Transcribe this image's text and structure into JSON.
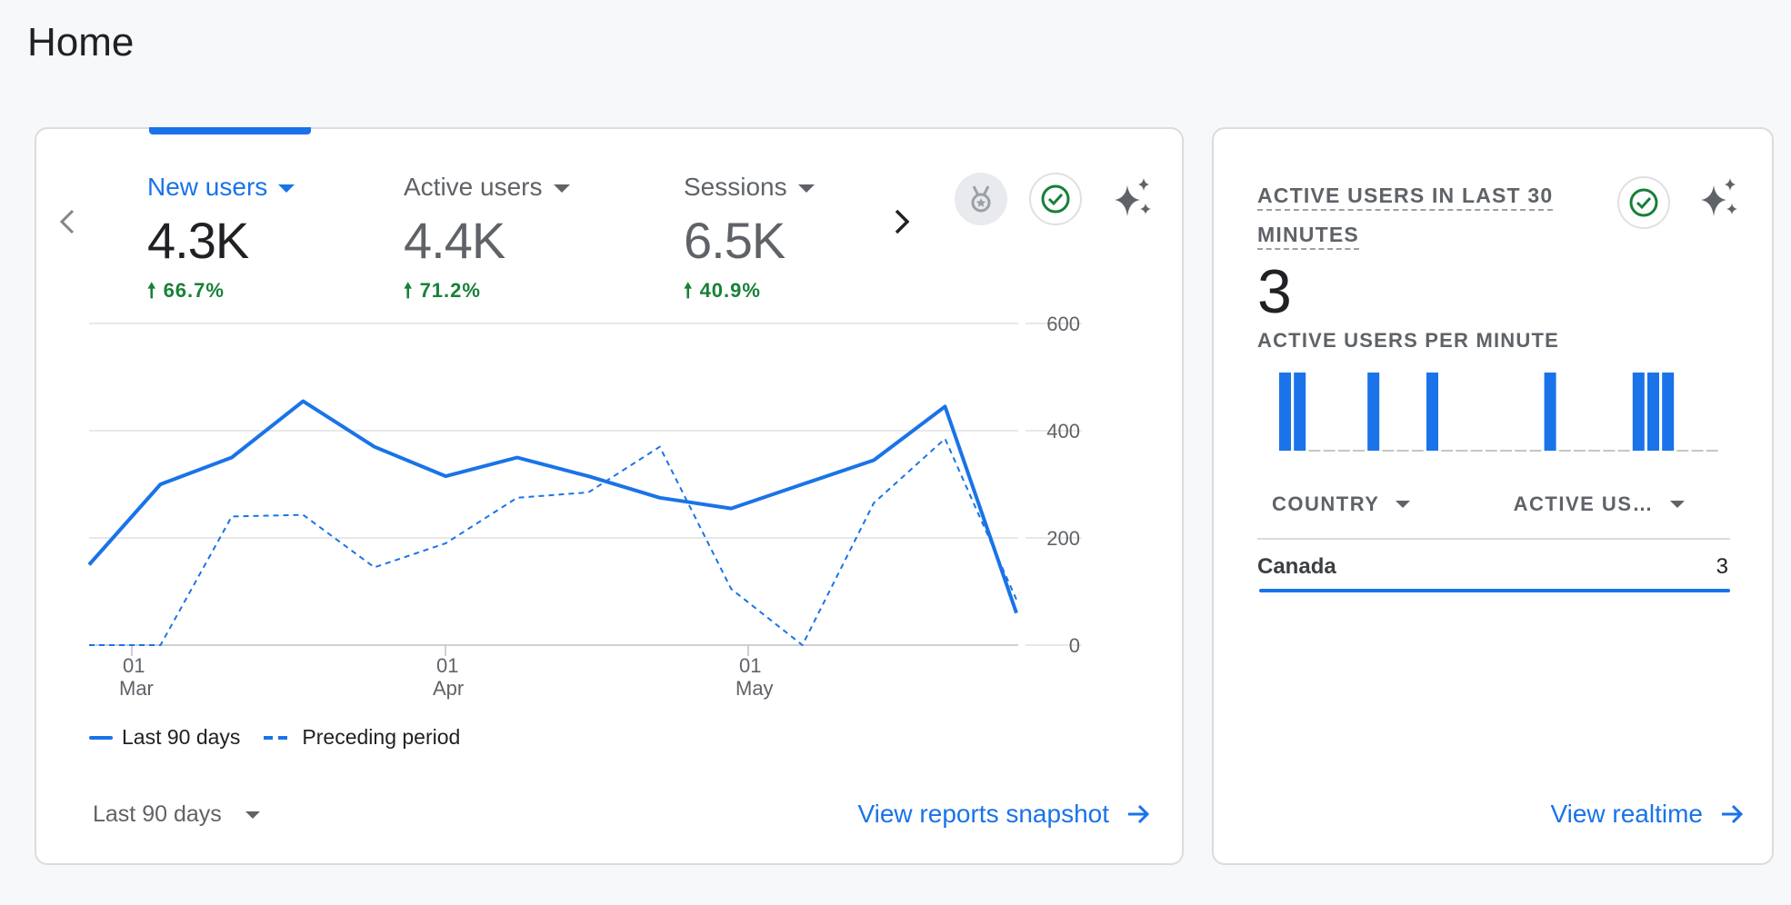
{
  "page": {
    "title": "Home"
  },
  "overview": {
    "metrics": [
      {
        "label": "New users",
        "value": "4.3K",
        "delta": "66.7%",
        "active": true
      },
      {
        "label": "Active users",
        "value": "4.4K",
        "delta": "71.2%",
        "active": false
      },
      {
        "label": "Sessions",
        "value": "6.5K",
        "delta": "40.9%",
        "active": false
      }
    ],
    "icons": {
      "prev": "chevron-left-icon",
      "next": "chevron-right-icon",
      "insight": "medal-icon",
      "status": "check-circle-icon",
      "ai": "sparkle-icon"
    },
    "legend": {
      "series1": "Last 90 days",
      "series2": "Preceding period"
    },
    "date_range": "Last 90 days",
    "link_label": "View reports snapshot"
  },
  "chart_data": {
    "type": "line",
    "y_ticks": [
      "600",
      "400",
      "200",
      "0"
    ],
    "ylim": [
      0,
      600
    ],
    "x_tick_labels": [
      {
        "day": "01",
        "month": "Mar"
      },
      {
        "day": "01",
        "month": "Apr"
      },
      {
        "day": "01",
        "month": "May"
      }
    ],
    "series": [
      {
        "name": "Last 90 days",
        "style": "solid",
        "color": "#1a73e8",
        "values": [
          150,
          300,
          350,
          455,
          370,
          315,
          350,
          315,
          275,
          255,
          300,
          345,
          445,
          60
        ]
      },
      {
        "name": "Preceding period",
        "style": "dashed",
        "color": "#1a73e8",
        "values": [
          0,
          0,
          240,
          243,
          145,
          190,
          275,
          285,
          370,
          105,
          0,
          265,
          385,
          85
        ]
      }
    ]
  },
  "realtime": {
    "title_line1": "ACTIVE USERS IN LAST 30",
    "title_line2": "MINUTES",
    "count": "3",
    "subtitle": "ACTIVE USERS PER MINUTE",
    "per_minute": [
      1,
      1,
      0,
      0,
      0,
      0,
      1,
      0,
      0,
      0,
      1,
      0,
      0,
      0,
      0,
      0,
      0,
      0,
      1,
      0,
      0,
      0,
      0,
      0,
      1,
      1,
      1,
      0,
      0,
      0
    ],
    "table_headers": {
      "country": "COUNTRY",
      "active": "ACTIVE US…"
    },
    "rows": [
      {
        "country": "Canada",
        "value": "3"
      }
    ],
    "link_label": "View realtime",
    "icons": {
      "status": "check-circle-icon",
      "ai": "sparkle-icon"
    }
  }
}
